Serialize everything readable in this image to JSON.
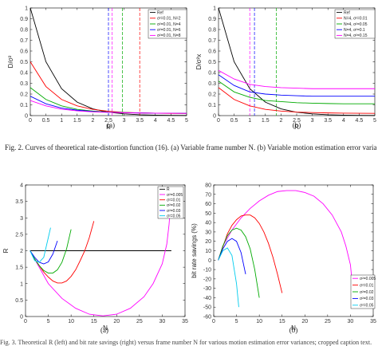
{
  "figure": {
    "caption_fig2": "Fig. 2.   Curves of theoretical rate-distortion function (16). (a) Variable frame number N. (b) Variable motion estimation error variance.",
    "caption_fig3": "Fig. 3.   Theoretical R (left) and bit rate savings (right) versus frame number N for various motion estimation error variances; cropped caption text."
  },
  "chart_data": [
    {
      "id": "top-left",
      "type": "line",
      "subcaption": "(a)",
      "xlabel": "R",
      "ylabel": "D/σ²",
      "xlim": [
        0,
        5
      ],
      "ylim": [
        0,
        1
      ],
      "xticks": [
        0,
        0.5,
        1,
        1.5,
        2,
        2.5,
        3,
        3.5,
        4,
        4.5,
        5
      ],
      "yticks": [
        0,
        0.1,
        0.2,
        0.3,
        0.4,
        0.5,
        0.6,
        0.7,
        0.8,
        0.9,
        1
      ],
      "legend_position": "top-right",
      "series": [
        {
          "name": "Ref",
          "color": "#000000",
          "x": [
            0,
            0.5,
            1,
            1.5,
            2,
            2.5,
            3,
            3.5,
            4,
            4.5,
            5
          ],
          "y": [
            1,
            0.5,
            0.25,
            0.125,
            0.0625,
            0.031,
            0.016,
            0.008,
            0.004,
            0.002,
            0.001
          ]
        },
        {
          "name": "σ²=0.01, N=2",
          "color": "#ff0000",
          "x": [
            0,
            0.5,
            1,
            1.5,
            2,
            2.5,
            3,
            3.5,
            4,
            4.5,
            5
          ],
          "y": [
            0.5,
            0.27,
            0.15,
            0.09,
            0.058,
            0.04,
            0.03,
            0.025,
            0.022,
            0.02,
            0.02
          ]
        },
        {
          "name": "σ²=0.01, N=4",
          "color": "#00aa00",
          "x": [
            0,
            0.5,
            1,
            1.5,
            2,
            2.5,
            3,
            3.5,
            4,
            4.5,
            5
          ],
          "y": [
            0.26,
            0.15,
            0.09,
            0.058,
            0.042,
            0.033,
            0.028,
            0.025,
            0.023,
            0.022,
            0.021
          ]
        },
        {
          "name": "σ²=0.01, N=6",
          "color": "#0000ff",
          "x": [
            0,
            0.5,
            1,
            1.5,
            2,
            2.5,
            3,
            3.5,
            4,
            4.5,
            5
          ],
          "y": [
            0.18,
            0.11,
            0.07,
            0.05,
            0.038,
            0.031,
            0.027,
            0.025,
            0.023,
            0.022,
            0.021
          ]
        },
        {
          "name": "σ²=0.01, N=8",
          "color": "#ff00ff",
          "x": [
            0,
            0.5,
            1,
            1.5,
            2,
            2.5,
            3,
            3.5,
            4,
            4.5,
            5
          ],
          "y": [
            0.14,
            0.09,
            0.06,
            0.044,
            0.035,
            0.03,
            0.026,
            0.024,
            0.023,
            0.022,
            0.021
          ]
        }
      ],
      "vlines": [
        {
          "x": 2.5,
          "color": "#0000ff"
        },
        {
          "x": 2.62,
          "color": "#ff00ff"
        },
        {
          "x": 2.95,
          "color": "#00aa00"
        },
        {
          "x": 3.5,
          "color": "#ff0000"
        }
      ]
    },
    {
      "id": "top-right",
      "type": "line",
      "subcaption": "(b)",
      "xlabel": "R",
      "ylabel": "D/σ²x",
      "xlim": [
        0,
        5
      ],
      "ylim": [
        0,
        1
      ],
      "xticks": [
        0,
        0.5,
        1,
        1.5,
        2,
        2.5,
        3,
        3.5,
        4,
        4.5,
        5
      ],
      "yticks": [
        0,
        0.1,
        0.2,
        0.3,
        0.4,
        0.5,
        0.6,
        0.7,
        0.8,
        0.9,
        1
      ],
      "legend_position": "top-right",
      "series": [
        {
          "name": "Ref",
          "color": "#000000",
          "x": [
            0,
            0.5,
            1,
            1.5,
            2,
            2.5,
            3,
            3.5,
            4,
            4.5,
            5
          ],
          "y": [
            1,
            0.5,
            0.25,
            0.125,
            0.0625,
            0.031,
            0.016,
            0.008,
            0.004,
            0.002,
            0.001
          ]
        },
        {
          "name": "N=4, σ²=0.01",
          "color": "#ff0000",
          "x": [
            0,
            0.5,
            1,
            1.5,
            2,
            2.5,
            3,
            3.5,
            4,
            4.5,
            5
          ],
          "y": [
            0.26,
            0.15,
            0.09,
            0.058,
            0.042,
            0.033,
            0.028,
            0.025,
            0.023,
            0.022,
            0.021
          ]
        },
        {
          "name": "N=4, σ²=0.05",
          "color": "#00aa00",
          "x": [
            0,
            0.5,
            1,
            1.5,
            2,
            2.5,
            3,
            3.5,
            4,
            4.5,
            5
          ],
          "y": [
            0.32,
            0.22,
            0.17,
            0.14,
            0.13,
            0.12,
            0.115,
            0.112,
            0.11,
            0.11,
            0.11
          ]
        },
        {
          "name": "N=4, σ²=0.1",
          "color": "#0000ff",
          "x": [
            0,
            0.5,
            1,
            1.5,
            2,
            2.5,
            3,
            3.5,
            4,
            4.5,
            5
          ],
          "y": [
            0.38,
            0.28,
            0.22,
            0.2,
            0.19,
            0.185,
            0.18,
            0.18,
            0.18,
            0.18,
            0.18
          ]
        },
        {
          "name": "N=4, σ²=0.15",
          "color": "#ff00ff",
          "x": [
            0,
            0.5,
            1,
            1.5,
            2,
            2.5,
            3,
            3.5,
            4,
            4.5,
            5
          ],
          "y": [
            0.42,
            0.34,
            0.29,
            0.27,
            0.26,
            0.255,
            0.25,
            0.25,
            0.25,
            0.25,
            0.25
          ]
        }
      ],
      "vlines": [
        {
          "x": 1.0,
          "color": "#ff00ff"
        },
        {
          "x": 1.15,
          "color": "#0000ff"
        },
        {
          "x": 1.85,
          "color": "#00aa00"
        }
      ]
    },
    {
      "id": "bottom-left",
      "type": "line",
      "subcaption": "(a)",
      "xlabel": "N",
      "ylabel": "R",
      "xlim": [
        0,
        35
      ],
      "ylim": [
        0,
        4
      ],
      "xticks": [
        0,
        5,
        10,
        15,
        20,
        25,
        30,
        35
      ],
      "yticks": [
        0,
        0.5,
        1,
        1.5,
        2,
        2.5,
        3,
        3.5,
        4
      ],
      "legend_position": "top-right",
      "series": [
        {
          "name": "R̄",
          "color": "#000000",
          "x": [
            1,
            32
          ],
          "y": [
            2,
            2
          ]
        },
        {
          "name": "σ²=0.005",
          "color": "#ff00ff",
          "x": [
            1,
            3,
            5,
            8,
            11,
            14,
            17,
            20,
            23,
            26,
            28,
            30,
            31,
            31.5,
            32
          ],
          "y": [
            2,
            1.5,
            1.0,
            0.55,
            0.25,
            0.07,
            0.02,
            0.07,
            0.25,
            0.6,
            1.0,
            1.6,
            2.2,
            2.8,
            3.7
          ]
        },
        {
          "name": "σ²=0.01",
          "color": "#ff0000",
          "x": [
            1,
            2,
            3,
            4,
            5,
            6,
            7,
            8,
            9,
            10,
            11,
            12,
            13,
            14,
            15
          ],
          "y": [
            2,
            1.75,
            1.55,
            1.35,
            1.2,
            1.08,
            1.02,
            1.02,
            1.08,
            1.22,
            1.42,
            1.7,
            2.0,
            2.4,
            2.9
          ]
        },
        {
          "name": "σ²=0.02",
          "color": "#00aa00",
          "x": [
            1,
            2,
            3,
            4,
            5,
            6,
            7,
            8,
            9,
            10
          ],
          "y": [
            2,
            1.75,
            1.55,
            1.4,
            1.32,
            1.32,
            1.42,
            1.65,
            2.05,
            2.65
          ]
        },
        {
          "name": "σ²=0.03",
          "color": "#0000ff",
          "x": [
            1,
            2,
            3,
            4,
            5,
            6,
            7
          ],
          "y": [
            2,
            1.8,
            1.65,
            1.6,
            1.66,
            1.9,
            2.3
          ]
        },
        {
          "name": "σ²=0.05",
          "color": "#00ccee",
          "x": [
            1,
            2,
            3,
            4,
            5,
            5.5
          ],
          "y": [
            2,
            1.7,
            1.65,
            1.8,
            2.4,
            2.7
          ]
        }
      ]
    },
    {
      "id": "bottom-right",
      "type": "line",
      "subcaption": "(b)",
      "xlabel": "N",
      "ylabel": "bit rate savings (%)",
      "xlim": [
        0,
        35
      ],
      "ylim": [
        -60,
        80
      ],
      "xticks": [
        0,
        5,
        10,
        15,
        20,
        25,
        30,
        35
      ],
      "yticks": [
        -60,
        -50,
        -40,
        -30,
        -20,
        -10,
        0,
        10,
        20,
        30,
        40,
        50,
        60,
        70,
        80
      ],
      "legend_position": "bottom-right",
      "series": [
        {
          "name": "σ²=0.005",
          "color": "#ff00ff",
          "x": [
            1,
            2,
            4,
            6,
            8,
            10,
            12,
            14,
            16,
            18,
            20,
            22,
            24,
            26,
            28,
            29,
            30,
            30.5
          ],
          "y": [
            0,
            15,
            32,
            45,
            55,
            63,
            69,
            73,
            74,
            74,
            72,
            68,
            60,
            48,
            30,
            15,
            -5,
            -30
          ]
        },
        {
          "name": "σ²=0.01",
          "color": "#ff0000",
          "x": [
            1,
            2,
            3,
            4,
            5,
            6,
            7,
            8,
            9,
            10,
            11,
            12,
            13,
            14,
            15
          ],
          "y": [
            0,
            14,
            28,
            37,
            43,
            47,
            48,
            48,
            45,
            39,
            30,
            18,
            3,
            -15,
            -35
          ]
        },
        {
          "name": "σ²=0.02",
          "color": "#00aa00",
          "x": [
            1,
            2,
            3,
            4,
            5,
            6,
            7,
            8,
            9,
            10
          ],
          "y": [
            0,
            15,
            26,
            32,
            34,
            32,
            25,
            12,
            -10,
            -40
          ]
        },
        {
          "name": "σ²=0.03",
          "color": "#0000ff",
          "x": [
            1,
            2,
            3,
            4,
            5,
            6,
            7
          ],
          "y": [
            0,
            12,
            20,
            23,
            20,
            8,
            -15
          ]
        },
        {
          "name": "σ²=0.05",
          "color": "#00ccee",
          "x": [
            1,
            2,
            3,
            4,
            5,
            5.5
          ],
          "y": [
            0,
            10,
            13,
            5,
            -25,
            -50
          ]
        }
      ]
    }
  ]
}
